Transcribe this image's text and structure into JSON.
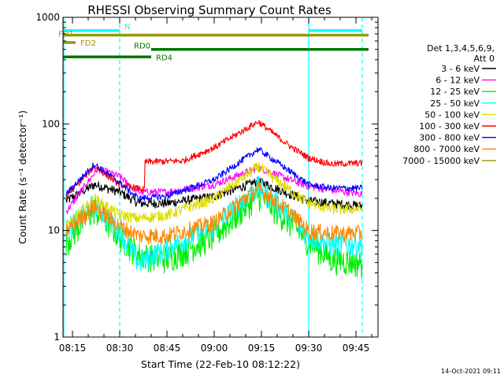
{
  "chart_data": {
    "type": "line",
    "title": "RHESSI Observing Summary Count Rates",
    "xlabel": "Start Time (22-Feb-10 08:12:22)",
    "ylabel": "Count Rate (s⁻¹ detector⁻¹)",
    "yscale": "log",
    "xlim": [
      "08:12",
      "09:52"
    ],
    "ylim": [
      1,
      1000
    ],
    "x_tick_labels": [
      "08:15",
      "08:30",
      "08:45",
      "09:00",
      "09:15",
      "09:30",
      "09:45"
    ],
    "y_tick_labels": [
      "1",
      "10",
      "100",
      "1000"
    ],
    "legend_header": [
      "Det 1,3,4,5,6,9,",
      "Att 0"
    ],
    "legend_placement": "right",
    "series": [
      {
        "name": "3 - 6 keV",
        "color": "#000000",
        "x": [
          "08:13",
          "08:22",
          "08:30",
          "08:36",
          "08:45",
          "09:00",
          "09:14",
          "09:24",
          "09:30",
          "09:37",
          "09:47"
        ],
        "values": [
          19,
          27,
          23,
          18,
          18,
          21,
          29,
          22,
          19,
          18,
          17
        ]
      },
      {
        "name": "6 - 12 keV",
        "color": "#ff00ff",
        "x": [
          "08:13",
          "08:23",
          "08:30",
          "08:36",
          "08:45",
          "09:00",
          "09:14",
          "09:24",
          "09:30",
          "09:37",
          "09:47"
        ],
        "values": [
          15,
          38,
          32,
          23,
          23,
          27,
          39,
          30,
          26,
          24,
          22
        ]
      },
      {
        "name": "12 - 25 keV",
        "color": "#00ee00",
        "x": [
          "08:13",
          "08:22",
          "08:30",
          "08:36",
          "08:45",
          "09:00",
          "09:14",
          "09:24",
          "09:30",
          "09:37",
          "09:47"
        ],
        "values": [
          8,
          16,
          9,
          6,
          5.5,
          9,
          22,
          12,
          8,
          5.5,
          5
        ]
      },
      {
        "name": "25 - 50 keV",
        "color": "#00ffff",
        "x": [
          "08:13",
          "08:22",
          "08:30",
          "08:36",
          "08:45",
          "09:00",
          "09:14",
          "09:24",
          "09:30",
          "09:37",
          "09:47"
        ],
        "values": [
          10,
          18,
          10,
          5,
          7,
          11,
          26,
          14,
          9,
          7.5,
          7.5
        ]
      },
      {
        "name": "50 - 100 keV",
        "color": "#dddd00",
        "x": [
          "08:13",
          "08:22",
          "08:30",
          "08:36",
          "08:45",
          "09:00",
          "09:14",
          "09:24",
          "09:30",
          "09:37",
          "09:47"
        ],
        "values": [
          11,
          20,
          14,
          13,
          14,
          20,
          40,
          24,
          18,
          16,
          16
        ]
      },
      {
        "name": "100 - 300 keV",
        "color": "#ff0000",
        "x": [
          "08:13",
          "08:22",
          "08:30",
          "08:38",
          "08:38",
          "08:50",
          "09:00",
          "09:14",
          "09:24",
          "09:30",
          "09:37",
          "09:47"
        ],
        "values": [
          21,
          40,
          27,
          24,
          44,
          45,
          60,
          105,
          62,
          48,
          42,
          43
        ]
      },
      {
        "name": "300 - 800 keV",
        "color": "#0000ff",
        "x": [
          "08:13",
          "08:22",
          "08:30",
          "08:36",
          "08:45",
          "09:00",
          "09:14",
          "09:24",
          "09:30",
          "09:37",
          "09:47"
        ],
        "values": [
          22,
          42,
          28,
          20,
          21,
          30,
          58,
          36,
          27,
          25,
          25
        ]
      },
      {
        "name": "800 - 7000 keV",
        "color": "#ff8800",
        "x": [
          "08:13",
          "08:22",
          "08:30",
          "08:36",
          "08:45",
          "09:00",
          "09:14",
          "09:24",
          "09:30",
          "09:37",
          "09:47"
        ],
        "values": [
          10,
          17,
          11,
          9,
          9,
          12,
          25,
          15,
          10,
          9.5,
          9.5
        ]
      },
      {
        "name": "7000 - 15000 keV",
        "color": "#999900",
        "x": [],
        "values": []
      }
    ],
    "flags": [
      {
        "label": "N",
        "color": "#00ffff",
        "segments": [
          [
            "08:12",
            "08:30"
          ],
          [
            "09:30",
            "09:47"
          ]
        ],
        "level": 750
      },
      {
        "label": "FD1",
        "color": "#999900",
        "segments": [
          [
            "08:12",
            "09:49"
          ]
        ],
        "level": 680
      },
      {
        "label": "FD2",
        "color": "#999900",
        "segments": [
          [
            "08:12",
            "08:16"
          ]
        ],
        "level": 580
      },
      {
        "label": "RD0",
        "color": "#007700",
        "segments": [
          [
            "08:40",
            "09:49"
          ]
        ],
        "level": 500
      },
      {
        "label": "RD4",
        "color": "#007700",
        "segments": [
          [
            "08:12",
            "08:40"
          ]
        ],
        "level": 425
      }
    ],
    "vertical_markers": [
      {
        "x": "08:12",
        "style": "solid",
        "color": "#00ffff"
      },
      {
        "x": "08:30",
        "style": "dashed",
        "color": "#00ffff"
      },
      {
        "x": "09:30",
        "style": "solid",
        "color": "#00ffff"
      },
      {
        "x": "09:47",
        "style": "dashed",
        "color": "#00ffff"
      }
    ],
    "grid": false
  },
  "footer": {
    "date": "14-Oct-2021 09:11"
  }
}
